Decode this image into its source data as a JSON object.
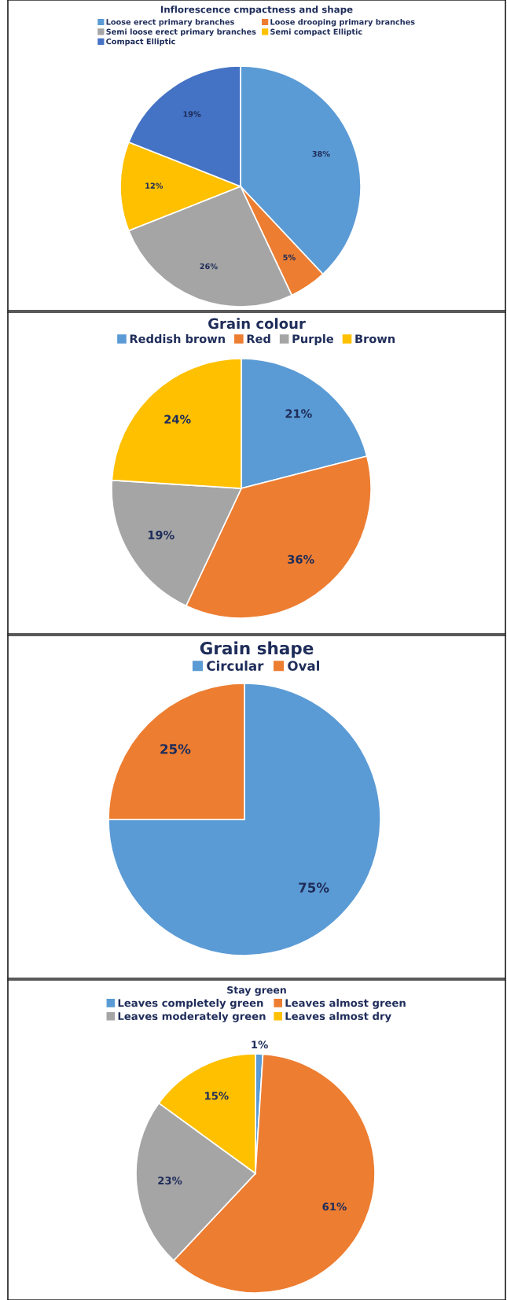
{
  "chart_data": [
    {
      "type": "pie",
      "title": "Inflorescence cmpactness and shape",
      "categories": [
        "Loose erect primary branches",
        "Loose drooping primary branches",
        "Semi loose erect primary branches",
        "Semi compact Elliptic",
        "Compact Elliptic"
      ],
      "values": [
        38,
        5,
        26,
        12,
        19
      ],
      "colors": [
        "#5b9bd5",
        "#ed7d31",
        "#a5a5a5",
        "#ffc000",
        "#4472c4"
      ],
      "value_labels": [
        "38%",
        "5%",
        "26%",
        "12%",
        "19%"
      ],
      "legend": "top"
    },
    {
      "type": "pie",
      "title": "Grain colour",
      "categories": [
        "Reddish brown",
        "Red",
        "Purple",
        "Brown"
      ],
      "values": [
        21,
        36,
        19,
        24
      ],
      "colors": [
        "#5b9bd5",
        "#ed7d31",
        "#a5a5a5",
        "#ffc000"
      ],
      "value_labels": [
        "21%",
        "36%",
        "19%",
        "24%"
      ],
      "legend": "top"
    },
    {
      "type": "pie",
      "title": "Grain shape",
      "categories": [
        "Circular",
        "Oval"
      ],
      "values": [
        75,
        25
      ],
      "colors": [
        "#5b9bd5",
        "#ed7d31"
      ],
      "value_labels": [
        "75%",
        "25%"
      ],
      "legend": "top"
    },
    {
      "type": "pie",
      "title": "Stay green",
      "categories": [
        "Leaves completely green",
        "Leaves almost green",
        "Leaves moderately green",
        "Leaves almost dry"
      ],
      "values": [
        1,
        61,
        23,
        15
      ],
      "colors": [
        "#5b9bd5",
        "#ed7d31",
        "#a5a5a5",
        "#ffc000"
      ],
      "value_labels": [
        "1%",
        "61%",
        "23%",
        "15%"
      ],
      "legend": "top"
    }
  ]
}
